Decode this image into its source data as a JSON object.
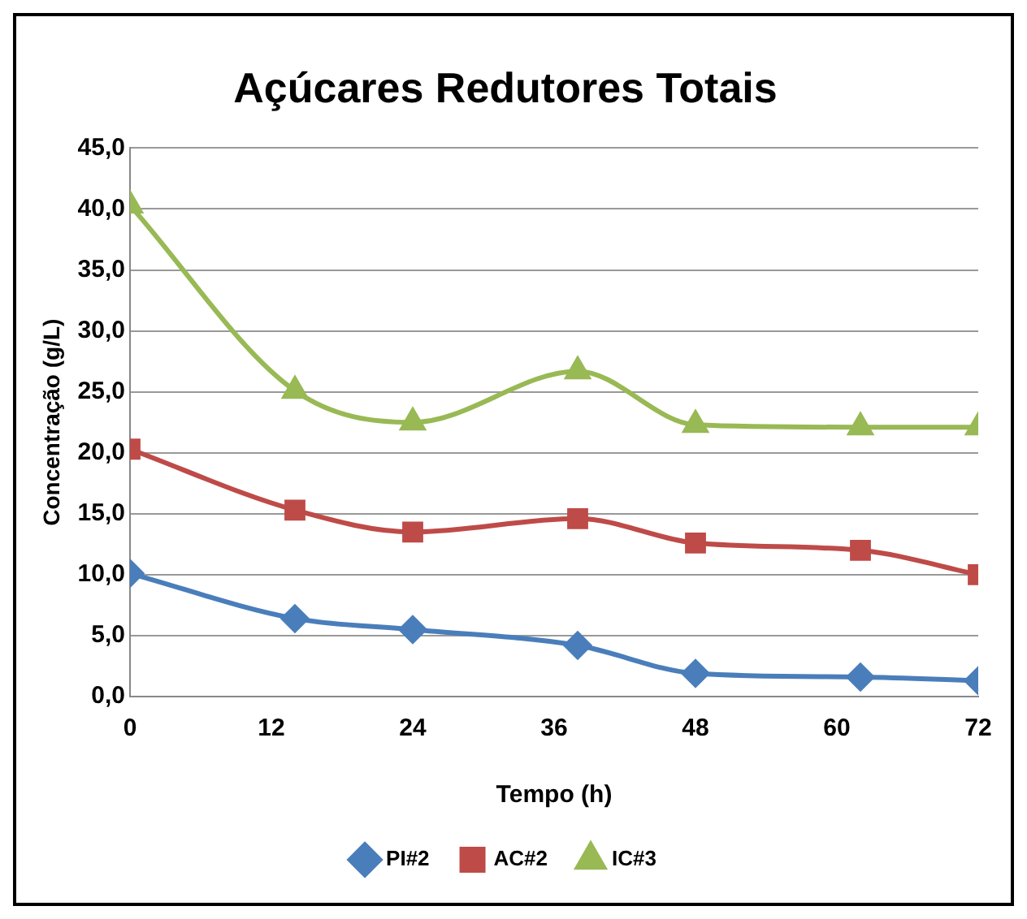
{
  "chart_data": {
    "type": "line",
    "title": "Açúcares Redutores Totais",
    "xlabel": "Tempo (h)",
    "ylabel": "Concentração (g/L)",
    "x": [
      0,
      14,
      24,
      38,
      48,
      62,
      72
    ],
    "series": [
      {
        "name": "PI#2",
        "color": "#4a7ebb",
        "marker": "diamond",
        "values": [
          10.1,
          6.4,
          5.5,
          4.2,
          1.9,
          1.6,
          1.3
        ]
      },
      {
        "name": "AC#2",
        "color": "#be4b48",
        "marker": "square",
        "values": [
          20.3,
          15.3,
          13.5,
          14.6,
          12.6,
          12.0,
          10.0
        ]
      },
      {
        "name": "IC#3",
        "color": "#98b954",
        "marker": "triangle",
        "values": [
          40.3,
          25.1,
          22.5,
          26.7,
          22.3,
          22.1,
          22.1
        ]
      }
    ],
    "xlim": [
      0,
      72
    ],
    "xticks": [
      0,
      12,
      24,
      36,
      48,
      60,
      72
    ],
    "ylim": [
      0,
      45
    ],
    "yticks": [
      {
        "value": 0,
        "label": "0,0"
      },
      {
        "value": 5,
        "label": "5,0"
      },
      {
        "value": 10,
        "label": "10,0"
      },
      {
        "value": 15,
        "label": "15,0"
      },
      {
        "value": 20,
        "label": "20,0"
      },
      {
        "value": 25,
        "label": "25,0"
      },
      {
        "value": 30,
        "label": "30,0"
      },
      {
        "value": 35,
        "label": "35,0"
      },
      {
        "value": 40,
        "label": "40,0"
      },
      {
        "value": 45,
        "label": "45,0"
      }
    ],
    "grid": "y",
    "legend": "bottom"
  }
}
